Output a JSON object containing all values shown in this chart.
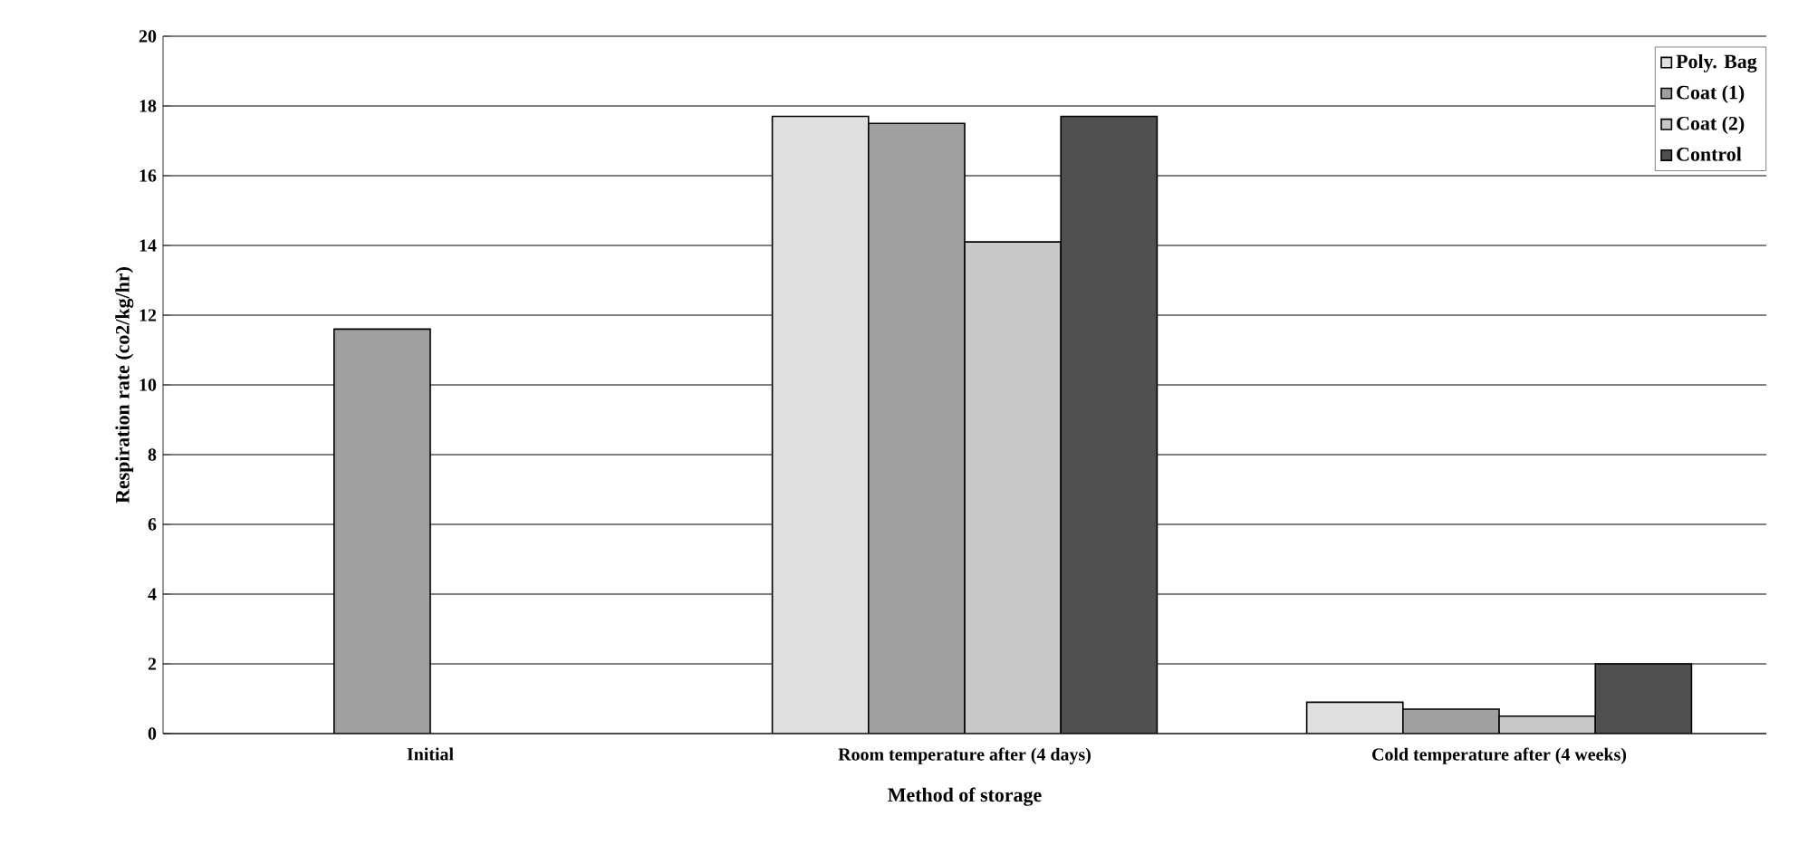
{
  "chart_data": {
    "type": "bar",
    "xlabel": "Method of storage",
    "ylabel": "Respiration rate (co2/kg/hr)",
    "categories": [
      "Initial",
      "Room temperature after (4 days)",
      "Cold temperature after (4 weeks)"
    ],
    "series": [
      {
        "name": "Poly. Bag",
        "color": "#e0e0e0",
        "values": [
          null,
          17.7,
          0.9
        ]
      },
      {
        "name": "Coat (1)",
        "color": "#a0a0a0",
        "values": [
          11.6,
          17.5,
          0.7
        ]
      },
      {
        "name": "Coat (2)",
        "color": "#c8c8c8",
        "values": [
          null,
          14.1,
          0.5
        ]
      },
      {
        "name": "Control",
        "color": "#505050",
        "values": [
          null,
          17.7,
          2.0
        ]
      }
    ],
    "ylim": [
      0,
      20
    ],
    "yticks": [
      0,
      2,
      4,
      6,
      8,
      10,
      12,
      14,
      16,
      18,
      20
    ],
    "grid": "y",
    "legend": "top right"
  }
}
